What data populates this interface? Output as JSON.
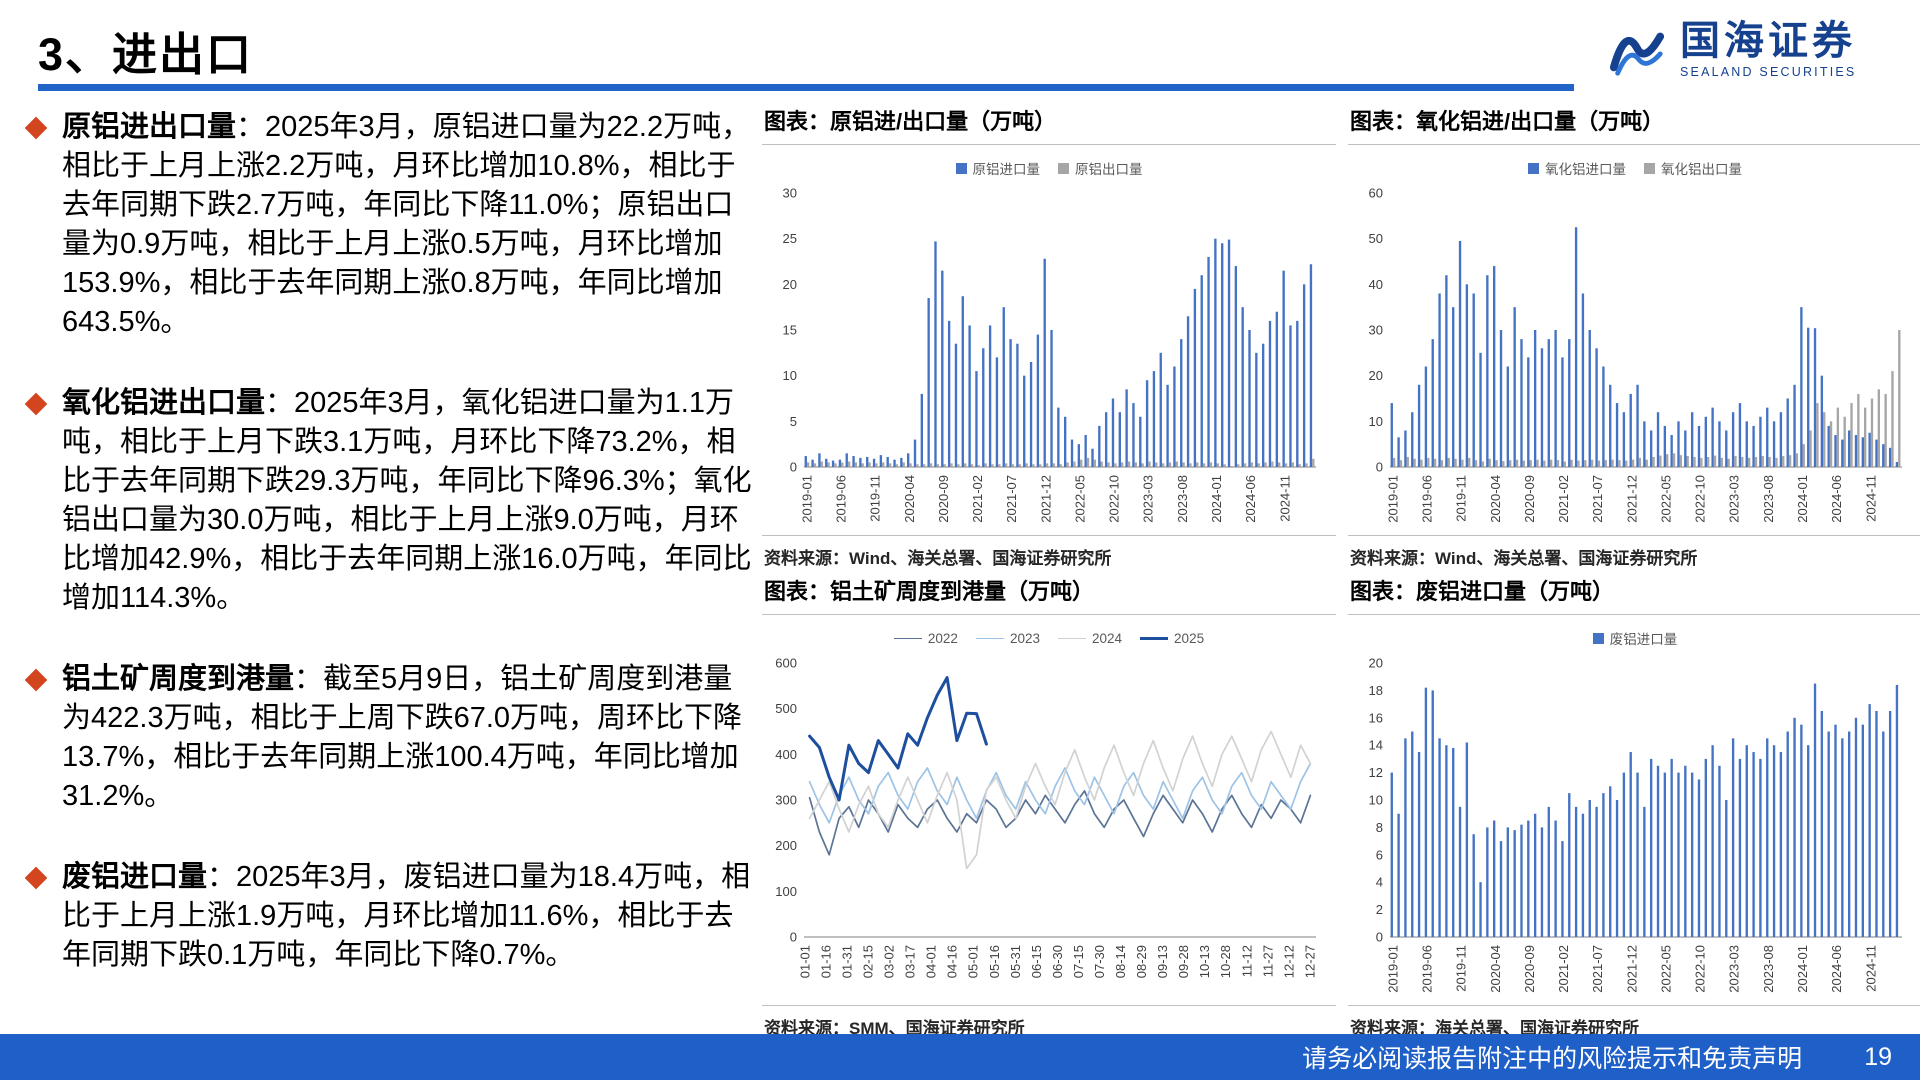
{
  "slide": {
    "title": "3、进出口"
  },
  "logo": {
    "name": "国海证券",
    "subtitle": "SEALAND SECURITIES"
  },
  "colors": {
    "accent_blue": "#2263C8",
    "bullet_diamond": "#D2451E",
    "bar_blue": "#4472C4",
    "bar_gray": "#A6A6A6",
    "footer_bg": "#1F5FC8",
    "logo_blue": "#15418F"
  },
  "bullets": [
    {
      "lead": "原铝进出口量",
      "text": "：2025年3月，原铝进口量为22.2万吨，相比于上月上涨2.2万吨，月环比增加10.8%，相比于去年同期下跌2.7万吨，年同比下降11.0%；原铝出口量为0.9万吨，相比于上月上涨0.5万吨，月环比增加153.9%，相比于去年同期上涨0.8万吨，年同比增加643.5%。"
    },
    {
      "lead": "氧化铝进出口量",
      "text": "：2025年3月，氧化铝进口量为1.1万吨，相比于上月下跌3.1万吨，月环比下降73.2%，相比于去年同期下跌29.3万吨，年同比下降96.3%；氧化铝出口量为30.0万吨，相比于上月上涨9.0万吨，月环比增加42.9%，相比于去年同期上涨16.0万吨，年同比增加114.3%。"
    },
    {
      "lead": "铝土矿周度到港量",
      "text": "：截至5月9日，铝土矿周度到港量为422.3万吨，相比于上周下跌67.0万吨，周环比下降13.7%，相比于去年同期上涨100.4万吨，年同比增加31.2%。"
    },
    {
      "lead": "废铝进口量",
      "text": "：2025年3月，废铝进口量为18.4万吨，相比于上月上涨1.9万吨，月环比增加11.6%，相比于去年同期下跌0.1万吨，年同比下降0.7%。"
    }
  ],
  "footer": {
    "disclaimer": "请务必阅读报告附注中的风险提示和免责声明",
    "page": "19"
  },
  "chart_data": [
    {
      "id": "primary-aluminum-trade",
      "type": "bar",
      "title": "图表：原铝进/出口量（万吨）",
      "source": "资料来源：Wind、海关总署、国海证券研究所",
      "ylim": [
        0,
        30
      ],
      "ystep": 5,
      "x_tick_every": 5,
      "x_tick_labels": [
        "2019-01",
        "2019-06",
        "2019-11",
        "2020-04",
        "2020-09",
        "2021-02",
        "2021-07",
        "2021-12",
        "2022-05",
        "2022-10",
        "2023-03",
        "2023-08",
        "2024-01",
        "2024-06",
        "2024-11"
      ],
      "series": [
        {
          "name": "原铝进口量",
          "color": "#4472C4",
          "values": [
            1.2,
            0.8,
            1.5,
            0.9,
            0.7,
            0.8,
            1.5,
            1.2,
            1.0,
            1.1,
            0.9,
            1.3,
            1.1,
            0.8,
            1.0,
            1.5,
            3.0,
            8.0,
            18.5,
            24.7,
            21.5,
            16.0,
            13.5,
            18.7,
            15.5,
            10.5,
            13.0,
            15.5,
            12.0,
            17.5,
            14.0,
            13.5,
            10.0,
            11.5,
            14.5,
            22.8,
            15.0,
            6.5,
            5.5,
            3.0,
            2.5,
            3.5,
            2.0,
            4.5,
            6.0,
            7.5,
            6.0,
            8.5,
            7.0,
            5.5,
            9.5,
            10.5,
            12.5,
            9.0,
            11.0,
            14.0,
            16.5,
            19.5,
            21.0,
            23.0,
            25.0,
            24.5,
            24.9,
            22.0,
            17.5,
            15.0,
            12.5,
            13.5,
            16.0,
            17.0,
            21.5,
            15.5,
            16.0,
            20.0,
            22.2
          ]
        },
        {
          "name": "原铝出口量",
          "color": "#A6A6A6",
          "values": [
            0.5,
            0.4,
            0.6,
            0.5,
            0.4,
            0.5,
            0.6,
            0.5,
            0.4,
            0.5,
            0.4,
            0.5,
            0.4,
            0.3,
            0.5,
            0.4,
            0.3,
            0.3,
            0.4,
            0.3,
            0.3,
            0.4,
            0.3,
            0.4,
            0.3,
            0.2,
            0.4,
            0.3,
            0.3,
            0.4,
            0.3,
            0.3,
            0.4,
            0.3,
            0.3,
            0.4,
            0.4,
            0.3,
            0.5,
            0.6,
            0.8,
            1.0,
            0.8,
            0.6,
            0.5,
            0.4,
            0.5,
            0.6,
            0.5,
            0.4,
            0.6,
            0.5,
            0.4,
            0.5,
            0.6,
            0.5,
            0.4,
            0.5,
            0.4,
            0.5,
            0.4,
            0.3,
            0.1,
            0.3,
            0.4,
            0.5,
            0.4,
            0.5,
            0.6,
            0.5,
            0.4,
            0.5,
            0.3,
            0.4,
            0.9
          ]
        }
      ]
    },
    {
      "id": "alumina-trade",
      "type": "bar",
      "title": "图表：氧化铝进/出口量（万吨）",
      "source": "资料来源：Wind、海关总署、国海证券研究所",
      "ylim": [
        0,
        60
      ],
      "ystep": 10,
      "x_tick_every": 5,
      "x_tick_labels": [
        "2019-01",
        "2019-06",
        "2019-11",
        "2020-04",
        "2020-09",
        "2021-02",
        "2021-07",
        "2021-12",
        "2022-05",
        "2022-10",
        "2023-03",
        "2023-08",
        "2024-01",
        "2024-06",
        "2024-11"
      ],
      "series": [
        {
          "name": "氧化铝进口量",
          "color": "#4472C4",
          "values": [
            14.0,
            6.5,
            8.0,
            12.0,
            18.0,
            22.0,
            28.0,
            38.0,
            42.0,
            35.0,
            49.5,
            40.0,
            38.0,
            25.0,
            42.0,
            44.0,
            30.0,
            22.0,
            35.0,
            28.0,
            24.0,
            30.0,
            26.0,
            28.0,
            30.0,
            24.0,
            28.0,
            52.5,
            38.0,
            30.0,
            26.0,
            22.0,
            18.0,
            14.0,
            12.0,
            16.0,
            18.0,
            10.0,
            8.0,
            12.0,
            9.0,
            7.0,
            10.0,
            8.0,
            12.0,
            9.0,
            11.0,
            13.0,
            10.0,
            8.0,
            12.0,
            14.0,
            10.0,
            9.0,
            11.0,
            13.0,
            10.0,
            12.0,
            15.0,
            18.0,
            35.0,
            30.5,
            30.4,
            20.0,
            9.0,
            7.0,
            6.0,
            8.0,
            7.0,
            6.5,
            7.5,
            6.0,
            5.0,
            4.2,
            1.1
          ]
        },
        {
          "name": "氧化铝出口量",
          "color": "#A6A6A6",
          "values": [
            2.0,
            1.5,
            2.2,
            1.8,
            1.6,
            2.0,
            1.8,
            1.5,
            2.0,
            1.8,
            1.6,
            2.0,
            1.5,
            1.2,
            1.8,
            1.5,
            1.3,
            1.5,
            1.6,
            1.4,
            1.5,
            1.6,
            1.4,
            1.6,
            1.5,
            1.2,
            1.6,
            1.4,
            1.5,
            1.6,
            1.4,
            1.5,
            1.6,
            1.5,
            1.4,
            1.6,
            2.0,
            1.6,
            2.2,
            2.5,
            2.8,
            3.0,
            2.6,
            2.4,
            2.2,
            2.0,
            2.2,
            2.5,
            2.0,
            1.8,
            2.4,
            2.2,
            2.0,
            2.2,
            2.4,
            2.2,
            2.0,
            2.4,
            2.6,
            3.0,
            5.0,
            8.0,
            14.0,
            12.0,
            10.0,
            13.0,
            11.0,
            14.0,
            16.0,
            13.0,
            15.0,
            17.0,
            16.0,
            21.0,
            30.0
          ]
        }
      ]
    },
    {
      "id": "bauxite-weekly-arrivals",
      "type": "line",
      "title": "图表：铝土矿周度到港量（万吨）",
      "source": "资料来源：SMM、国海证券研究所",
      "ylim": [
        0,
        600
      ],
      "ystep": 100,
      "x_tick_labels": [
        "01-01",
        "01-16",
        "01-31",
        "02-15",
        "03-02",
        "03-17",
        "04-01",
        "04-16",
        "05-01",
        "05-16",
        "05-31",
        "06-15",
        "06-30",
        "07-15",
        "07-30",
        "08-14",
        "08-29",
        "09-13",
        "09-28",
        "10-13",
        "10-28",
        "11-12",
        "11-27",
        "12-12",
        "12-27"
      ],
      "series": [
        {
          "name": "2022",
          "color": "#5B7394",
          "width": 1.7,
          "values": [
            305,
            230,
            180,
            260,
            285,
            240,
            300,
            270,
            230,
            290,
            260,
            240,
            280,
            300,
            260,
            230,
            270,
            250,
            300,
            280,
            240,
            260,
            300,
            270,
            310,
            280,
            250,
            290,
            320,
            270,
            240,
            280,
            300,
            260,
            220,
            270,
            310,
            280,
            250,
            300,
            270,
            230,
            280,
            310,
            270,
            240,
            290,
            260,
            300,
            280,
            250,
            310
          ]
        },
        {
          "name": "2023",
          "color": "#9DC3E6",
          "width": 1.7,
          "values": [
            340,
            290,
            250,
            310,
            350,
            300,
            270,
            330,
            360,
            310,
            280,
            340,
            370,
            320,
            290,
            350,
            300,
            260,
            320,
            360,
            310,
            280,
            340,
            300,
            270,
            330,
            370,
            320,
            290,
            350,
            310,
            270,
            330,
            360,
            310,
            280,
            340,
            300,
            260,
            320,
            350,
            300,
            270,
            330,
            360,
            310,
            280,
            340,
            310,
            280,
            340,
            380
          ]
        },
        {
          "name": "2024",
          "color": "#D2D2D2",
          "width": 1.7,
          "values": [
            260,
            300,
            340,
            280,
            230,
            290,
            330,
            270,
            240,
            300,
            350,
            300,
            250,
            310,
            360,
            300,
            150,
            180,
            322,
            350,
            300,
            260,
            330,
            380,
            330,
            290,
            360,
            410,
            350,
            300,
            370,
            420,
            360,
            310,
            380,
            430,
            370,
            320,
            390,
            440,
            380,
            330,
            400,
            440,
            390,
            340,
            410,
            450,
            400,
            350,
            420,
            380
          ]
        },
        {
          "name": "2025",
          "color": "#1D4F9E",
          "width": 3,
          "values": [
            440,
            415,
            350,
            300,
            420,
            380,
            360,
            430,
            400,
            370,
            445,
            420,
            480,
            530,
            568,
            430,
            490,
            489.3,
            422.3
          ]
        }
      ]
    },
    {
      "id": "scrap-aluminum-imports",
      "type": "bar",
      "title": "图表：废铝进口量（万吨）",
      "source": "资料来源：海关总署、国海证券研究所",
      "ylim": [
        0,
        20
      ],
      "ystep": 2,
      "x_tick_every": 5,
      "x_tick_labels": [
        "2019-01",
        "2019-06",
        "2019-11",
        "2020-04",
        "2020-09",
        "2021-02",
        "2021-07",
        "2021-12",
        "2022-05",
        "2022-10",
        "2023-03",
        "2023-08",
        "2024-01",
        "2024-06",
        "2024-11"
      ],
      "series": [
        {
          "name": "废铝进口量",
          "color": "#4472C4",
          "values": [
            12.0,
            9.0,
            14.5,
            15.0,
            13.5,
            18.2,
            18.0,
            14.5,
            14.0,
            13.8,
            9.5,
            14.2,
            7.5,
            4.0,
            8.0,
            8.5,
            7.0,
            8.0,
            7.8,
            8.2,
            8.5,
            9.0,
            8.0,
            9.5,
            8.5,
            7.0,
            10.5,
            9.5,
            9.0,
            10.0,
            9.5,
            10.5,
            11.0,
            10.0,
            12.0,
            13.5,
            12.0,
            9.5,
            13.0,
            12.5,
            12.0,
            13.0,
            12.0,
            12.5,
            12.0,
            11.5,
            13.0,
            14.0,
            12.5,
            10.0,
            14.5,
            13.0,
            14.0,
            13.5,
            13.0,
            14.5,
            14.0,
            13.5,
            15.0,
            16.0,
            15.5,
            14.0,
            18.5,
            16.5,
            15.0,
            15.5,
            14.5,
            15.0,
            16.0,
            15.5,
            17.0,
            16.5,
            15.0,
            16.5,
            18.4
          ]
        }
      ]
    }
  ]
}
